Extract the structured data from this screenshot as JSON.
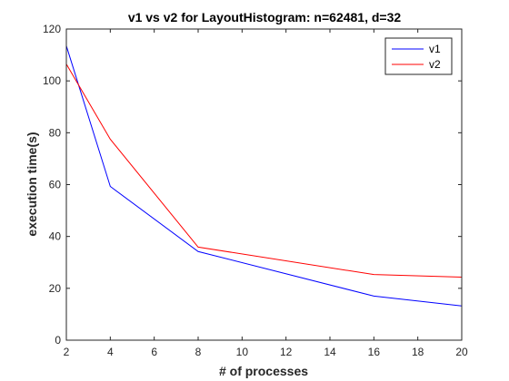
{
  "chart_data": {
    "type": "line",
    "title": "v1 vs v2 for LayoutHistogram: n=62481, d=32",
    "xlabel": "# of processes",
    "ylabel": "execution time(s)",
    "xlim": [
      2,
      20
    ],
    "ylim": [
      0,
      120
    ],
    "xticks": [
      2,
      4,
      6,
      8,
      10,
      12,
      14,
      16,
      18,
      20
    ],
    "yticks": [
      0,
      20,
      40,
      60,
      80,
      100,
      120
    ],
    "grid": false,
    "legend": "top-right",
    "x": [
      2,
      4,
      8,
      16,
      20
    ],
    "series": [
      {
        "name": "v1",
        "color": "#0000ff",
        "values": [
          113.5,
          59.3,
          34.2,
          17.0,
          13.2
        ]
      },
      {
        "name": "v2",
        "color": "#ff0000",
        "values": [
          106.5,
          77.5,
          35.9,
          25.3,
          24.3
        ]
      }
    ]
  }
}
